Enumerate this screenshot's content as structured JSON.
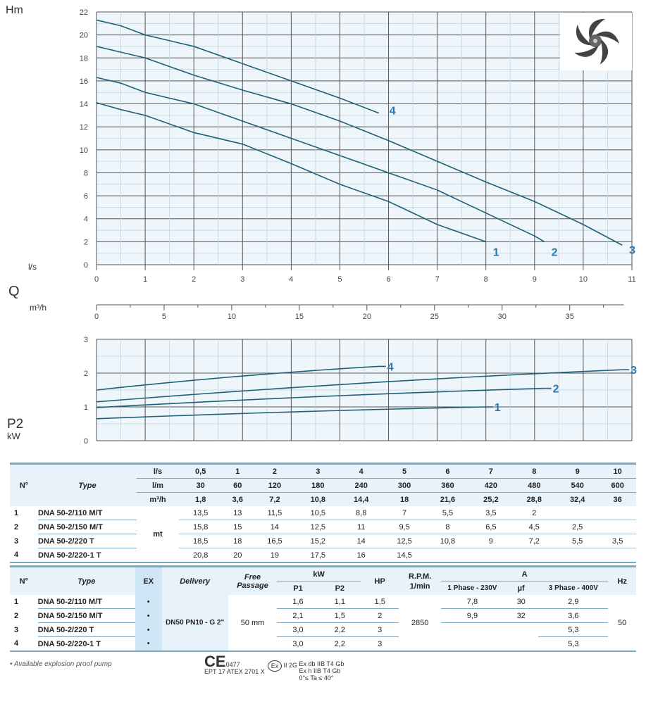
{
  "chart_data": [
    {
      "type": "line",
      "xlabel": "l/s",
      "ylabel": "Hm",
      "xlim": [
        0,
        11
      ],
      "ylim": [
        0,
        22
      ],
      "x_ticks": [
        "0",
        "1",
        "2",
        "3",
        "4",
        "5",
        "6",
        "7",
        "8",
        "9",
        "10",
        "11"
      ],
      "y_ticks": [
        "0",
        "2",
        "4",
        "6",
        "8",
        "10",
        "12",
        "14",
        "16",
        "18",
        "20",
        "22"
      ],
      "grid": true,
      "series": [
        {
          "name": "1",
          "x": [
            0,
            0.5,
            1,
            2,
            3,
            4,
            5,
            6,
            7,
            8
          ],
          "y": [
            14.1,
            13.5,
            13,
            11.5,
            10.5,
            8.8,
            7,
            5.5,
            3.5,
            2
          ]
        },
        {
          "name": "2",
          "x": [
            0,
            0.5,
            1,
            2,
            3,
            4,
            5,
            6,
            7,
            8,
            9,
            9.2
          ],
          "y": [
            16.3,
            15.8,
            15,
            14,
            12.5,
            11,
            9.5,
            8,
            6.5,
            4.5,
            2.5,
            2
          ]
        },
        {
          "name": "3",
          "x": [
            0,
            0.5,
            1,
            2,
            3,
            4,
            5,
            6,
            7,
            8,
            9,
            10,
            10.8
          ],
          "y": [
            19,
            18.5,
            18,
            16.5,
            15.2,
            14,
            12.5,
            10.8,
            9,
            7.2,
            5.5,
            3.5,
            1.7
          ]
        },
        {
          "name": "4",
          "x": [
            0,
            0.5,
            1,
            2,
            3,
            4,
            5,
            5.8
          ],
          "y": [
            21.3,
            20.8,
            20,
            19,
            17.5,
            16,
            14.5,
            13.2
          ]
        }
      ]
    },
    {
      "type": "line",
      "secondary_axis": {
        "label": "Q",
        "unit": "m³/h",
        "ticks": [
          "0",
          "5",
          "10",
          "15",
          "20",
          "25",
          "30",
          "35"
        ]
      }
    },
    {
      "type": "line",
      "ylabel": "P2",
      "yunit": "kW",
      "xlim": [
        0,
        11
      ],
      "ylim": [
        0,
        3
      ],
      "y_ticks": [
        "0",
        "1",
        "2",
        "3"
      ],
      "grid": true,
      "series": [
        {
          "name": "1",
          "x": [
            0,
            8
          ],
          "y": [
            0.65,
            1.0
          ]
        },
        {
          "name": "2",
          "x": [
            0,
            9.2
          ],
          "y": [
            0.98,
            1.55
          ]
        },
        {
          "name": "3",
          "x": [
            0,
            10.8
          ],
          "y": [
            1.15,
            2.1
          ]
        },
        {
          "name": "4",
          "x": [
            0,
            5.8
          ],
          "y": [
            1.5,
            2.2
          ]
        }
      ]
    }
  ],
  "axis": {
    "hm": "Hm",
    "ls": "l/s",
    "q": "Q",
    "m3h": "m³/h",
    "p2": "P2",
    "kw": "kW"
  },
  "colors": {
    "curve": "#1f5f7a",
    "label": "#2a7ab0",
    "grid_bg": "#eef5fb",
    "header_bg": "#e8f2fa",
    "ex_col": "#cfe6f7"
  },
  "table1": {
    "h_no": "N°",
    "h_type": "Type",
    "units": [
      {
        "u": "l/s",
        "v": [
          "0,5",
          "1",
          "2",
          "3",
          "4",
          "5",
          "6",
          "7",
          "8",
          "9",
          "10"
        ]
      },
      {
        "u": "l/m",
        "v": [
          "30",
          "60",
          "120",
          "180",
          "240",
          "300",
          "360",
          "420",
          "480",
          "540",
          "600"
        ]
      },
      {
        "u": "m³/h",
        "v": [
          "1,8",
          "3,6",
          "7,2",
          "10,8",
          "14,4",
          "18",
          "21,6",
          "25,2",
          "28,8",
          "32,4",
          "36"
        ]
      }
    ],
    "mt": "mt",
    "rows": [
      {
        "n": "1",
        "type": "DNA 50-2/110 M/T",
        "v": [
          "13,5",
          "13",
          "11,5",
          "10,5",
          "8,8",
          "7",
          "5,5",
          "3,5",
          "2",
          "",
          ""
        ]
      },
      {
        "n": "2",
        "type": "DNA 50-2/150 M/T",
        "v": [
          "15,8",
          "15",
          "14",
          "12,5",
          "11",
          "9,5",
          "8",
          "6,5",
          "4,5",
          "2,5",
          ""
        ]
      },
      {
        "n": "3",
        "type": "DNA 50-2/220 T",
        "v": [
          "18,5",
          "18",
          "16,5",
          "15,2",
          "14",
          "12,5",
          "10,8",
          "9",
          "7,2",
          "5,5",
          "3,5"
        ]
      },
      {
        "n": "4",
        "type": "DNA 50-2/220-1 T",
        "v": [
          "20,8",
          "20",
          "19",
          "17,5",
          "16",
          "14,5",
          "",
          "",
          "",
          "",
          ""
        ]
      }
    ]
  },
  "table2": {
    "h": {
      "no": "N°",
      "type": "Type",
      "ex": "EX",
      "delivery": "Delivery",
      "free": "Free Passage",
      "kw": "kW",
      "p1": "P1",
      "p2": "P2",
      "hp": "HP",
      "rpm": "R.P.M.",
      "rpm2": "1/min",
      "a": "A",
      "ph1": "1 Phase - 230V",
      "uf": "µf",
      "ph3": "3 Phase - 400V",
      "hz": "Hz"
    },
    "delivery": "DN50 PN10 - G 2\"",
    "free": "50 mm",
    "rpm": "2850",
    "hz": "50",
    "rows": [
      {
        "n": "1",
        "type": "DNA 50-2/110 M/T",
        "ex": "•",
        "p1": "1,6",
        "p2": "1,1",
        "hp": "1,5",
        "a1": "7,8",
        "uf": "30",
        "a3": "2,9"
      },
      {
        "n": "2",
        "type": "DNA 50-2/150 M/T",
        "ex": "•",
        "p1": "2,1",
        "p2": "1,5",
        "hp": "2",
        "a1": "9,9",
        "uf": "32",
        "a3": "3,6"
      },
      {
        "n": "3",
        "type": "DNA 50-2/220 T",
        "ex": "•",
        "p1": "3,0",
        "p2": "2,2",
        "hp": "3",
        "a1": "",
        "uf": "",
        "a3": "5,3"
      },
      {
        "n": "4",
        "type": "DNA 50-2/220-1 T",
        "ex": "•",
        "p1": "3,0",
        "p2": "2,2",
        "hp": "3",
        "a1": "",
        "uf": "",
        "a3": "5,3"
      }
    ]
  },
  "footer": {
    "note": "• Available explosion proof pump",
    "ce": "CE",
    "ce_num": "0477",
    "atex": "EPT 17 ATEX 2701 X",
    "ex_group": "II 2G",
    "ex1": "Ex db IIB T4 Gb",
    "ex2": "Ex h IIB T4 Gb",
    "ex3": "0°≤ Ta ≤ 40°"
  }
}
